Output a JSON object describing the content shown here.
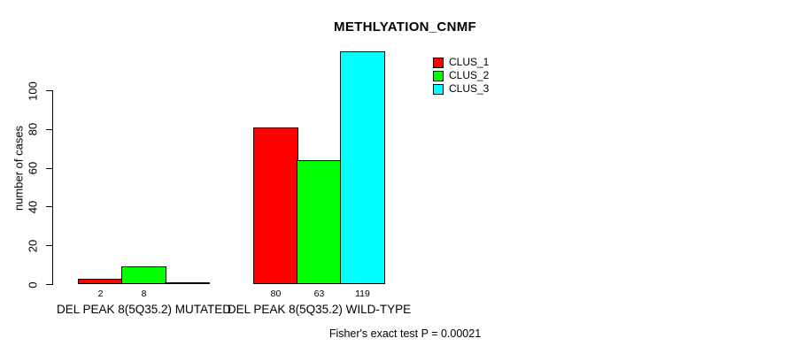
{
  "chart_data": {
    "type": "bar",
    "title": "METHLYATION_CNMF",
    "ylabel": "number of cases",
    "xlabel": "",
    "categories": [
      "DEL PEAK  8(5Q35.2) MUTATED",
      "DEL PEAK  8(5Q35.2) WILD-TYPE"
    ],
    "series": [
      {
        "name": "CLUS_1",
        "color": "#ff0000",
        "values": [
          2,
          80
        ]
      },
      {
        "name": "CLUS_2",
        "color": "#00ff00",
        "values": [
          8,
          63
        ]
      },
      {
        "name": "CLUS_3",
        "color": "#00ffff",
        "values": [
          0,
          119
        ]
      }
    ],
    "bar_value_labels": [
      [
        "2",
        "8",
        ""
      ],
      [
        "80",
        "63",
        "119"
      ]
    ],
    "yticks": [
      0,
      20,
      40,
      60,
      80,
      100
    ],
    "ylim": [
      0,
      119
    ],
    "grid": false,
    "legend_position": "top-right",
    "bar_border_color": "#000000",
    "annotation": "Fisher's exact test P = 0.00021"
  }
}
